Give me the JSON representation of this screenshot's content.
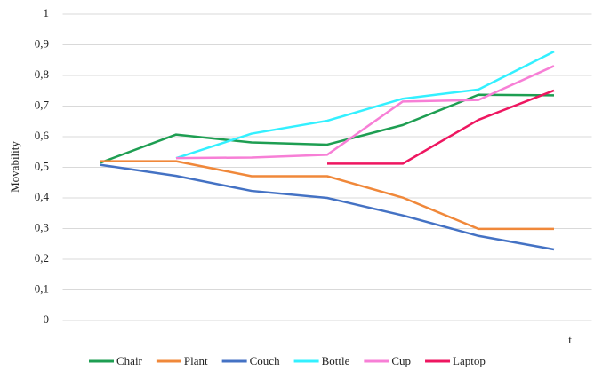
{
  "chart_data": {
    "type": "line",
    "xlabel": "t",
    "ylabel": "Movability",
    "categories": [
      null,
      null,
      null,
      null,
      null,
      null,
      null
    ],
    "series": [
      {
        "name": "Chair",
        "color": "#1e9e52",
        "values": [
          0.515,
          0.607,
          0.581,
          0.574,
          0.638,
          0.737,
          0.735
        ]
      },
      {
        "name": "Plant",
        "color": "#f0883a",
        "values": [
          0.52,
          0.52,
          0.471,
          0.471,
          0.401,
          0.299,
          0.299
        ]
      },
      {
        "name": "Couch",
        "color": "#4472c4",
        "values": [
          0.508,
          0.472,
          0.423,
          0.4,
          0.343,
          0.276,
          0.232
        ]
      },
      {
        "name": "Bottle",
        "color": "#33f0ff",
        "values": [
          null,
          0.53,
          0.61,
          0.652,
          0.724,
          0.754,
          0.878
        ]
      },
      {
        "name": "Cup",
        "color": "#f77fd6",
        "values": [
          null,
          0.53,
          0.532,
          0.541,
          0.715,
          0.72,
          0.831
        ]
      },
      {
        "name": "Laptop",
        "color": "#ee1660",
        "values": [
          null,
          null,
          null,
          0.512,
          0.512,
          0.655,
          0.751
        ]
      }
    ],
    "ylim": [
      0,
      1
    ],
    "yticks": [
      0,
      {
        "value": 0.1,
        "label": "0,1"
      },
      {
        "value": 0.2,
        "label": "0,2"
      },
      {
        "value": 0.3,
        "label": "0,3"
      },
      {
        "value": 0.4,
        "label": "0,4"
      },
      {
        "value": 0.5,
        "label": "0,5"
      },
      {
        "value": 0.6,
        "label": "0,6"
      },
      {
        "value": 0.7,
        "label": "0,7"
      },
      {
        "value": 0.8,
        "label": "0,8"
      },
      {
        "value": 0.9,
        "label": "0,9"
      },
      1
    ],
    "grid": true,
    "legend": "bottom"
  }
}
